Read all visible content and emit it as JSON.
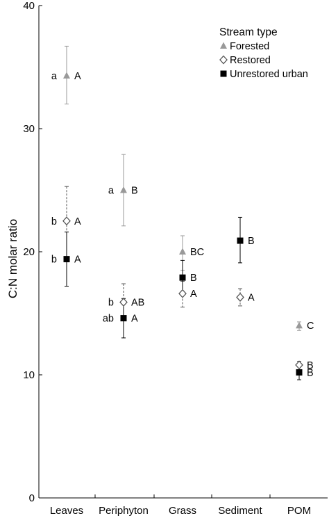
{
  "chart_data": {
    "type": "scatter",
    "title": "",
    "xlabel": "",
    "ylabel": "C:N molar ratio",
    "ylim": [
      0,
      40
    ],
    "yticks": [
      0,
      10,
      20,
      30,
      40
    ],
    "categories": [
      "Leaves",
      "Periphyton",
      "Grass",
      "Sediment",
      "POM"
    ],
    "legend": {
      "title": "Stream type",
      "position": "top-right"
    },
    "series": [
      {
        "name": "Forested",
        "marker": "filled-triangle",
        "color": "#999999",
        "error_style": "solid",
        "values": [
          34.3,
          25.0,
          20.0,
          null,
          14.0
        ],
        "err_low": [
          32.0,
          22.1,
          18.5,
          null,
          13.6
        ],
        "err_high": [
          36.7,
          27.9,
          21.3,
          null,
          14.3
        ],
        "letters": [
          "A",
          "B",
          "BC",
          "",
          "C"
        ],
        "prefixes": [
          "a",
          "a",
          "",
          "",
          ""
        ]
      },
      {
        "name": "Restored",
        "marker": "open-diamond",
        "color": "#555555",
        "error_style": "dashed",
        "values": [
          22.5,
          15.9,
          16.6,
          16.3,
          10.8
        ],
        "err_low": [
          19.5,
          14.4,
          15.5,
          15.6,
          10.4
        ],
        "err_high": [
          25.3,
          17.4,
          17.6,
          17.0,
          11.1
        ],
        "letters": [
          "A",
          "AB",
          "A",
          "A",
          "B"
        ],
        "prefixes": [
          "b",
          "b",
          "",
          "",
          ""
        ]
      },
      {
        "name": "Unrestored urban",
        "marker": "filled-square",
        "color": "#000000",
        "error_style": "solid",
        "values": [
          19.4,
          14.6,
          17.9,
          20.9,
          10.2
        ],
        "err_low": [
          17.2,
          13.0,
          16.6,
          19.1,
          9.6
        ],
        "err_high": [
          21.6,
          16.2,
          19.3,
          22.8,
          10.8
        ],
        "letters": [
          "A",
          "A",
          "B",
          "B",
          "B"
        ],
        "prefixes": [
          "b",
          "ab",
          "",
          "",
          ""
        ]
      }
    ]
  }
}
